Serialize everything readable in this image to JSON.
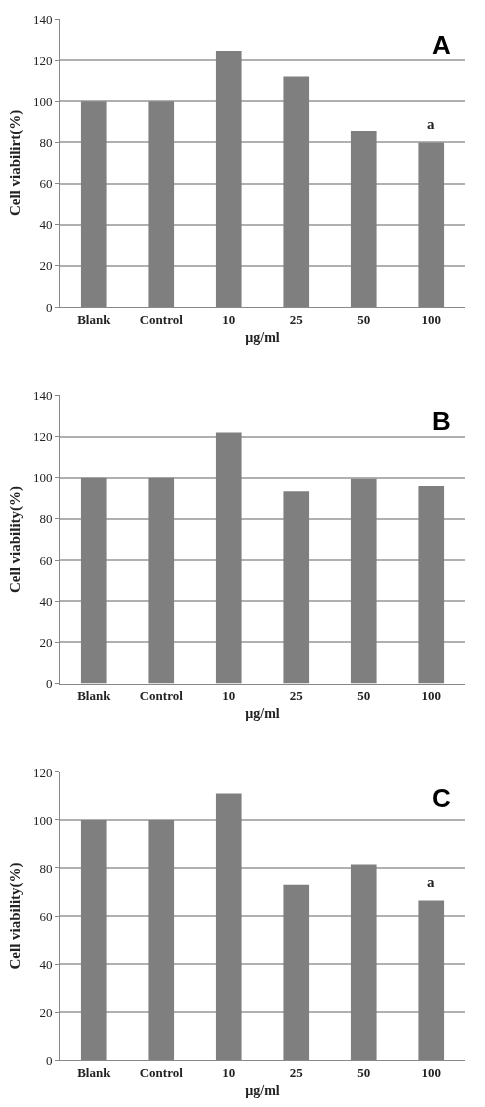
{
  "chart_data": [
    {
      "type": "bar",
      "title": "A",
      "categories": [
        "Blank",
        "Control",
        "10",
        "25",
        "50",
        "100"
      ],
      "values": [
        100,
        100,
        124.5,
        112,
        85.5,
        80
      ],
      "color": "#7f7f7f",
      "xlabel": "µg/ml",
      "ylabel": "Cell viabilirt(%)",
      "ylim": [
        0,
        140
      ],
      "yticks": [
        0,
        20,
        40,
        60,
        80,
        100,
        120,
        140
      ],
      "grid": "y",
      "annotations": [
        {
          "text": "a",
          "x": "100",
          "y": 80
        }
      ]
    },
    {
      "type": "bar",
      "title": "B",
      "categories": [
        "Blank",
        "Control",
        "10",
        "25",
        "50",
        "100"
      ],
      "values": [
        100,
        100,
        122,
        93.5,
        99.5,
        96
      ],
      "color": "#7f7f7f",
      "xlabel": "µg/ml",
      "ylabel": "Cell viability(%)",
      "ylim": [
        0,
        140
      ],
      "yticks": [
        0,
        20,
        40,
        60,
        80,
        100,
        120,
        140
      ],
      "grid": "y"
    },
    {
      "type": "bar",
      "title": "C",
      "categories": [
        "Blank",
        "Control",
        "10",
        "25",
        "50",
        "100"
      ],
      "values": [
        100,
        100,
        111,
        73,
        81.5,
        66.5
      ],
      "color": "#7f7f7f",
      "xlabel": "µg/ml",
      "ylabel": "Cell viability(%)",
      "ylim": [
        0,
        120
      ],
      "yticks": [
        0,
        20,
        40,
        60,
        80,
        100,
        120
      ],
      "grid": "y",
      "annotations": [
        {
          "text": "a",
          "x": "100",
          "y": 66.5
        }
      ]
    }
  ]
}
